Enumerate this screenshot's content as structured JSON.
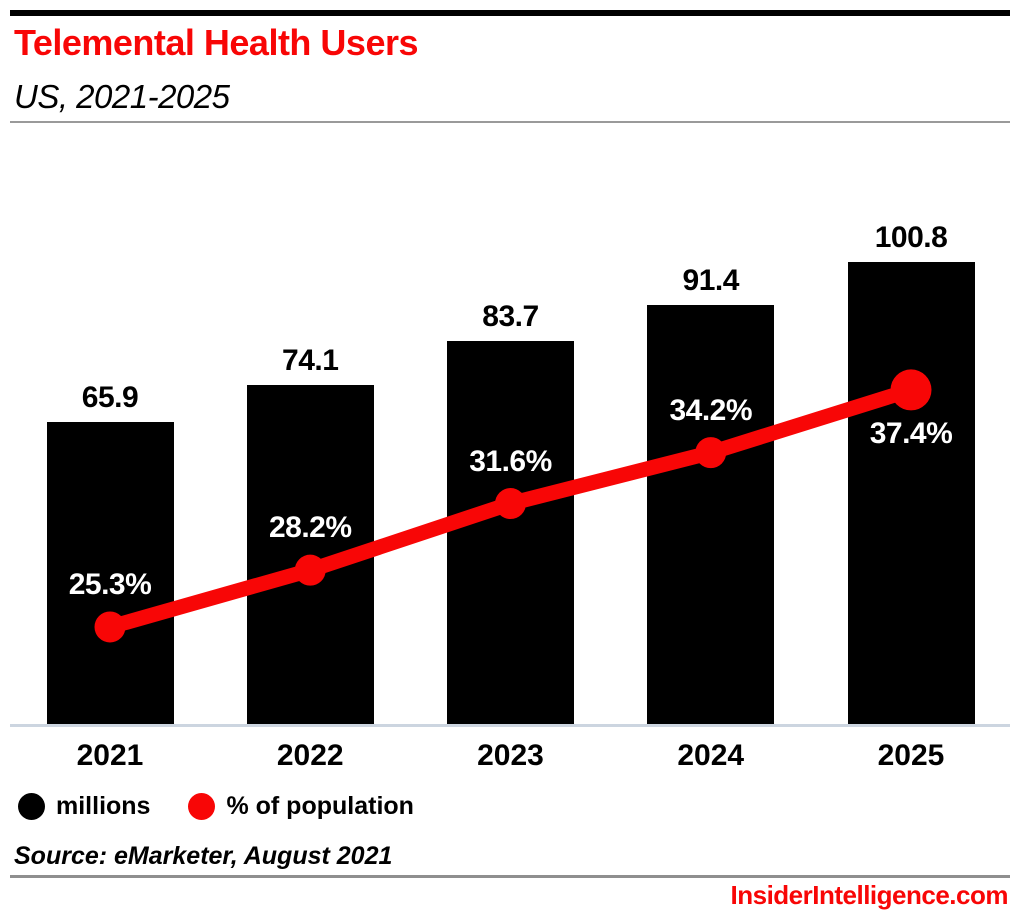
{
  "header": {
    "title": "Telemental Health Users",
    "subtitle": "US, 2021-2025"
  },
  "chart_data": {
    "type": "bar",
    "subtype": "bar-with-line-overlay",
    "title": "Telemental Health Users",
    "subtitle": "US, 2021-2025",
    "categories": [
      "2021",
      "2022",
      "2023",
      "2024",
      "2025"
    ],
    "series": [
      {
        "name": "millions",
        "type": "bar",
        "color": "#000000",
        "values": [
          65.9,
          74.1,
          83.7,
          91.4,
          100.8
        ],
        "data_labels": [
          "65.9",
          "74.1",
          "83.7",
          "91.4",
          "100.8"
        ]
      },
      {
        "name": "% of population",
        "type": "line",
        "color": "#f80606",
        "values": [
          25.3,
          28.2,
          31.6,
          34.2,
          37.4
        ],
        "data_labels": [
          "25.3%",
          "28.2%",
          "31.6%",
          "34.2%",
          "37.4%"
        ]
      }
    ],
    "xlabel": "",
    "ylabel": "",
    "value_axis": "hidden",
    "grid": false,
    "legend_position": "bottom-left"
  },
  "legend": {
    "items": [
      {
        "label": "millions",
        "color": "#000000"
      },
      {
        "label": "% of population",
        "color": "#f80606"
      }
    ]
  },
  "source": "Source: eMarketer, August 2021",
  "footer": {
    "brand": "InsiderIntelligence.com"
  },
  "colors": {
    "accent_red": "#f80606",
    "bar_black": "#000000",
    "axis_line": "#ccd5e0",
    "rule_gray": "#8f8f8f",
    "label_on_bar": "#ffffff"
  }
}
